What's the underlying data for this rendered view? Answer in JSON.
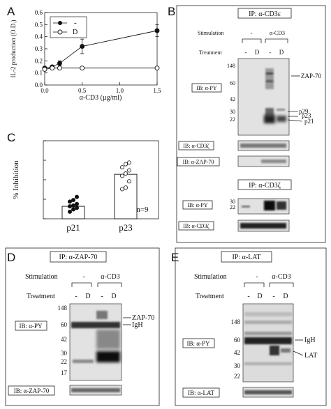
{
  "panels": {
    "A": {
      "letter": "A",
      "chart_data": {
        "type": "line",
        "xlabel": "α-CD3 (µg/ml)",
        "ylabel": "IL-2 production (O.D.)",
        "xlim": [
          0,
          1.5
        ],
        "ylim": [
          0,
          0.6
        ],
        "xticks": [
          "0.0",
          "0.5",
          "1.0",
          "1.5"
        ],
        "yticks": [
          "0.0",
          "0.1",
          "0.2",
          "0.3",
          "0.4",
          "0.5",
          "0.6"
        ],
        "legend_position": "top-left",
        "series": [
          {
            "name": "-",
            "marker": "filled-circle",
            "x": [
              0,
              0.1,
              0.2,
              0.5,
              1.5
            ],
            "y": [
              0.14,
              0.15,
              0.18,
              0.32,
              0.45
            ],
            "err": [
              0.01,
              0.01,
              0.02,
              0.06,
              0.05
            ]
          },
          {
            "name": "D",
            "marker": "open-circle",
            "x": [
              0,
              0.1,
              0.2,
              0.5,
              1.5
            ],
            "y": [
              0.13,
              0.14,
              0.14,
              0.14,
              0.14
            ],
            "err": [
              0,
              0,
              0,
              0,
              0
            ]
          }
        ]
      }
    },
    "B": {
      "letter": "B",
      "ip_top": "IP: α-CD3ε",
      "ip_bottom": "IP: α-CD3ζ",
      "stimulation_label": "Stimulation",
      "treatment_label": "Treatment",
      "stim_groups": [
        "-",
        "α-CD3"
      ],
      "treatments": [
        "-",
        "D",
        "-",
        "D"
      ],
      "markers_top": [
        "148",
        "60",
        "42",
        "30",
        "22"
      ],
      "markers_bottom": [
        "30",
        "22"
      ],
      "ib_rows": [
        "IB: α-PY",
        "IB: α-CD3ζ",
        "IB: α-ZAP-70",
        "IB: α-PY",
        "IB: α-CD3ζ"
      ],
      "arrows": [
        "ZAP-70",
        "p29",
        "p23",
        "p21"
      ]
    },
    "C": {
      "letter": "C",
      "chart_data": {
        "type": "bar",
        "categories": [
          "p21",
          "p23"
        ],
        "values": [
          16,
          57
        ],
        "ylabel": "% Inhibition",
        "ylim": [
          0,
          100
        ],
        "n_label": "n=9",
        "points": [
          [
            9,
            12,
            14,
            16,
            17,
            19,
            22,
            24,
            28
          ],
          [
            38,
            40,
            48,
            55,
            58,
            62,
            66,
            70,
            72
          ]
        ]
      }
    },
    "D": {
      "letter": "D",
      "ip": "IP: α-ZAP-70",
      "stimulation_label": "Stimulation",
      "treatment_label": "Treatment",
      "stim_groups": [
        "-",
        "α-CD3"
      ],
      "treatments": [
        "-",
        "D",
        "-",
        "D"
      ],
      "markers": [
        "148",
        "60",
        "42",
        "30",
        "22",
        "17"
      ],
      "ib_rows": [
        "IB: α-PY",
        "IB: α-ZAP-70"
      ],
      "arrows": [
        "ZAP-70",
        "IgH"
      ]
    },
    "E": {
      "letter": "E",
      "ip": "IP: α-LAT",
      "stimulation_label": "Stimulation",
      "treatment_label": "Treatment",
      "stim_groups": [
        "-",
        "α-CD3"
      ],
      "treatments": [
        "-",
        "D",
        "-",
        "D"
      ],
      "markers": [
        "148",
        "60",
        "42",
        "30",
        "22"
      ],
      "ib_rows": [
        "IB: α-PY",
        "IB: α-LAT"
      ],
      "arrows": [
        "IgH",
        "LAT"
      ]
    }
  }
}
